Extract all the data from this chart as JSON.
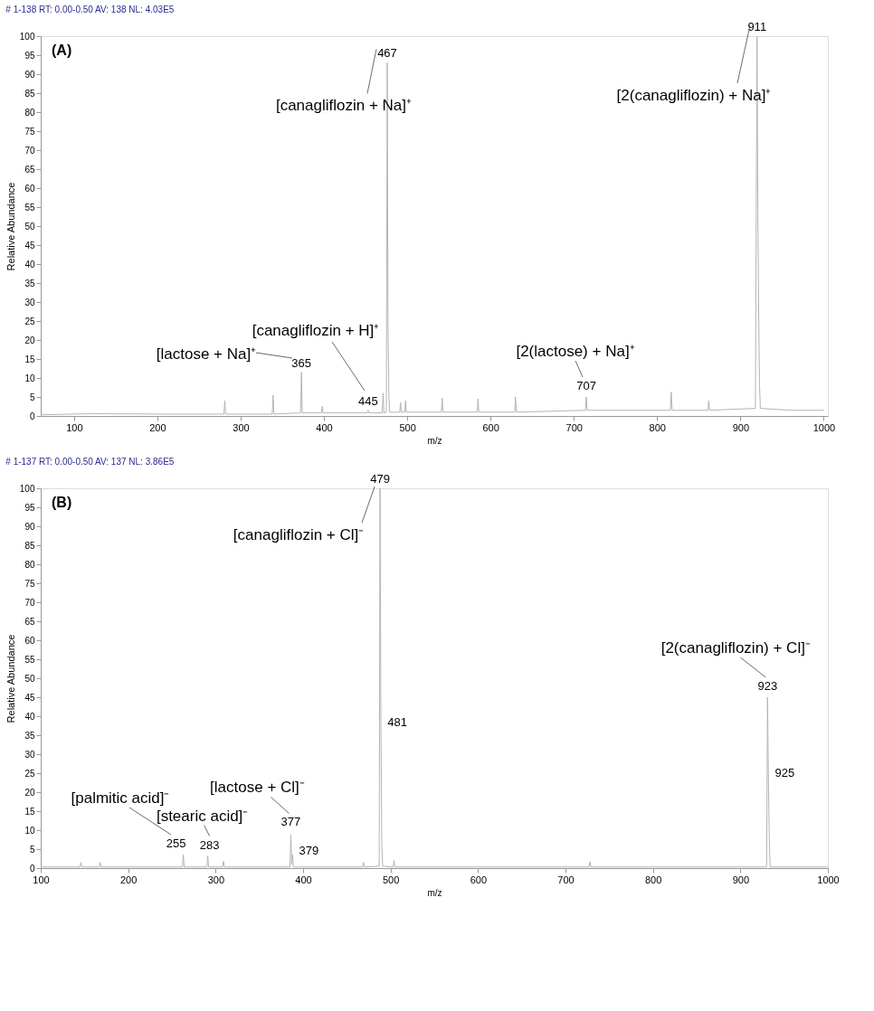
{
  "chart_data": [
    {
      "type": "line",
      "title": "# 1-138     RT:  0.00-0.50     AV:  138     NL:  4.03E5",
      "xlabel": "m/z",
      "ylabel": "Relative Abundance",
      "x": [
        60,
        120,
        200,
        280,
        281,
        282,
        338,
        339,
        340,
        372,
        373,
        374,
        397,
        398,
        399,
        452,
        453,
        454,
        470,
        471,
        472,
        475,
        476,
        477,
        478,
        479,
        491,
        492,
        493,
        497,
        498,
        499,
        541,
        542,
        543,
        584,
        585,
        586,
        629,
        630,
        631,
        714,
        715,
        716,
        816,
        817,
        818,
        861,
        862,
        863,
        918,
        920,
        921,
        922,
        923,
        924,
        960,
        1000
      ],
      "series": [
        {
          "color": "#b4b4b4",
          "values": [
            0.3,
            0.6,
            0.5,
            0.5,
            4,
            0.5,
            0.5,
            5.5,
            0.5,
            0.8,
            11.5,
            0.8,
            0.8,
            2.5,
            0.8,
            0.8,
            1.5,
            0.8,
            0.8,
            6,
            0.8,
            1,
            93,
            24,
            5.5,
            1,
            1,
            3.5,
            1,
            1,
            4,
            1,
            1,
            4.7,
            1,
            1,
            4.5,
            1,
            1,
            5,
            1,
            1.5,
            5,
            1.5,
            1.5,
            6.3,
            1.5,
            1.5,
            4,
            1.5,
            2,
            100,
            53,
            26,
            8,
            2,
            1.5,
            1.5
          ]
        }
      ],
      "xlim": [
        60,
        1005
      ],
      "xticks": [
        100,
        200,
        300,
        400,
        500,
        600,
        700,
        800,
        900,
        {
          "value": 1000,
          "label": "1000"
        }
      ],
      "ylim": [
        0,
        100
      ],
      "yticks": [
        0,
        5,
        10,
        15,
        20,
        25,
        30,
        35,
        40,
        45,
        50,
        55,
        60,
        65,
        70,
        75,
        80,
        85,
        90,
        95,
        100
      ],
      "grid": false,
      "annotations": [
        "(A)",
        {
          "text": "467",
          "x": 476,
          "y": 93
        },
        {
          "text": "911",
          "x": 920,
          "y": 100
        },
        {
          "text": "365",
          "x": 373,
          "y": 11.5
        },
        {
          "text": "445",
          "x": 453,
          "y": 1.5
        },
        {
          "text": "707",
          "x": 715,
          "y": 5
        },
        {
          "text": "[canagliflozin + Na]⁺",
          "x": 476,
          "y": 93
        },
        "[2(canagliflozin) + Na]⁺",
        "[canagliflozin + H]⁺",
        "[lactose + Na]⁺",
        {
          "text": "[2(lactose) + Na]⁺",
          "x": 715,
          "y": 5
        }
      ]
    },
    {
      "type": "line",
      "title": "# 1-137     RT:  0.00-0.50     AV:  137     NL:  3.86E5",
      "xlabel": "m/z",
      "ylabel": "Relative Abundance",
      "x": [
        100,
        145,
        146,
        147,
        167,
        168,
        169,
        262,
        263,
        264,
        290,
        291,
        292,
        308,
        309,
        310,
        385,
        386,
        387,
        388,
        389,
        468,
        469,
        470,
        487,
        488,
        489,
        490,
        491,
        503,
        504,
        505,
        727,
        728,
        729,
        930,
        931,
        932,
        933,
        934,
        1000
      ],
      "series": [
        {
          "color": "#b4b4b4",
          "values": [
            0.3,
            0.3,
            1.5,
            0.3,
            0.3,
            1.5,
            0.3,
            0.3,
            3.5,
            0.3,
            0.3,
            3.2,
            0.3,
            0.3,
            1.8,
            0.3,
            0.3,
            8.7,
            1,
            3.5,
            0.3,
            0.3,
            1.5,
            0.3,
            0.5,
            100,
            37,
            6,
            0.5,
            0.3,
            2,
            0.3,
            0.3,
            1.7,
            0.3,
            0.3,
            45,
            24,
            8,
            0.3,
            0.3
          ]
        }
      ],
      "xlim": [
        100,
        1000
      ],
      "xticks": [
        100,
        200,
        300,
        400,
        500,
        600,
        700,
        800,
        900,
        {
          "value": 1000,
          "label": "1000"
        }
      ],
      "ylim": [
        0,
        100
      ],
      "yticks": [
        0,
        5,
        10,
        15,
        20,
        25,
        30,
        35,
        40,
        45,
        50,
        55,
        60,
        65,
        70,
        75,
        80,
        85,
        90,
        95,
        100
      ],
      "grid": false,
      "annotations": [
        "(B)",
        {
          "text": "479",
          "x": 488,
          "y": 100
        },
        {
          "text": "481",
          "x": 489,
          "y": 37
        },
        {
          "text": "923",
          "x": 931,
          "y": 45
        },
        {
          "text": "925",
          "x": 932,
          "y": 24
        },
        {
          "text": "377",
          "x": 386,
          "y": 8.7
        },
        {
          "text": "379",
          "x": 388,
          "y": 3.5
        },
        {
          "text": "255",
          "x": 263,
          "y": 3.5
        },
        {
          "text": "283",
          "x": 291,
          "y": 3.2
        },
        {
          "text": "[canagliflozin + Cl]⁻",
          "x": 488,
          "y": 100
        },
        {
          "text": "[2(canagliflozin) + Cl]⁻",
          "x": 931,
          "y": 45
        },
        {
          "text": "[lactose + Cl]⁻",
          "x": 386,
          "y": 8.7
        },
        "[palmitic acid]⁻",
        {
          "text": "[stearic acid]⁻",
          "x": 291,
          "y": 3.2
        }
      ]
    }
  ]
}
